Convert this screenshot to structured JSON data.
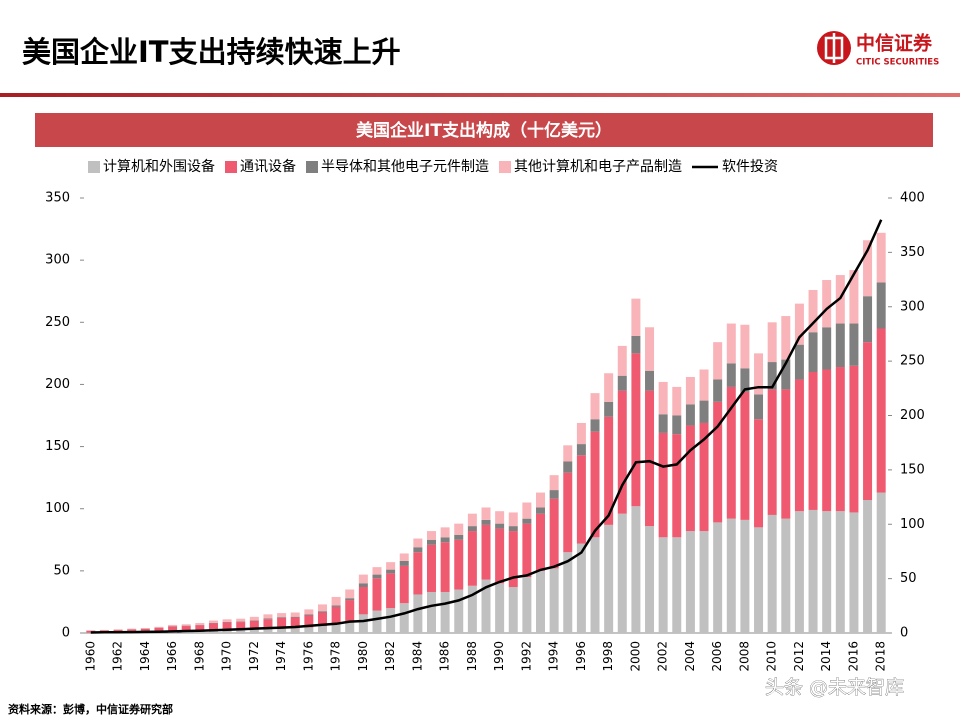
{
  "header": {
    "title": "美国企业IT支出持续快速上升",
    "logo_name": "中信证券",
    "logo_subtitle": "CITIC SECURITIES"
  },
  "source": "资料来源：彭博，中信证券研究部",
  "watermark": "头条 @未来智库",
  "chart_data": {
    "type": "bar",
    "stacked": true,
    "title": "美国企业IT支出构成（十亿美元）",
    "legend": "top",
    "categories": [
      1960,
      null,
      1962,
      null,
      1964,
      null,
      1966,
      null,
      1968,
      null,
      1970,
      null,
      1972,
      null,
      1974,
      null,
      1976,
      null,
      1978,
      null,
      1980,
      null,
      1982,
      null,
      1984,
      null,
      1986,
      null,
      1988,
      null,
      1990,
      null,
      1992,
      null,
      1994,
      null,
      1996,
      null,
      1998,
      null,
      2000,
      null,
      2002,
      null,
      2004,
      null,
      2006,
      null,
      2008,
      null,
      2010,
      null,
      2012,
      null,
      2014,
      null,
      2016,
      null,
      2018
    ],
    "ylim": [
      0,
      350
    ],
    "yticks": [
      0,
      50,
      100,
      150,
      200,
      250,
      300,
      350
    ],
    "y2lim": [
      0,
      400
    ],
    "y2ticks": [
      0,
      50,
      100,
      150,
      200,
      250,
      300,
      350,
      400
    ],
    "series": [
      {
        "name": "计算机和外围设备",
        "color": "#c0c0c0",
        "values": [
          0.3,
          0.4,
          0.6,
          0.8,
          1,
          1.3,
          1.8,
          2,
          2.2,
          2.7,
          2.8,
          2.8,
          3.2,
          3.6,
          3.8,
          3.8,
          4.5,
          5.5,
          7,
          9.5,
          15,
          18,
          20,
          24,
          31,
          33,
          33,
          35,
          38,
          43,
          40,
          37,
          45,
          50,
          52,
          65,
          72,
          77,
          87,
          96,
          102,
          86,
          77,
          77,
          82,
          82,
          89,
          92,
          91,
          85,
          95,
          92,
          98,
          99,
          98,
          98,
          97,
          107,
          113
        ]
      },
      {
        "name": "通讯设备",
        "color": "#f05a70",
        "values": [
          1.5,
          1.7,
          1.9,
          2.1,
          2.3,
          2.8,
          3.4,
          3.6,
          4.1,
          5,
          5.7,
          6,
          6.6,
          7.5,
          8.4,
          8.7,
          9.6,
          11,
          14,
          17,
          22,
          26,
          28,
          30,
          34,
          38,
          40,
          40,
          44,
          44,
          44,
          45,
          43,
          46,
          56,
          64,
          71,
          85,
          87,
          99,
          123,
          109,
          84,
          83,
          85,
          87,
          97,
          106,
          103,
          87,
          101,
          104,
          106,
          111,
          114,
          116,
          118,
          127,
          132
        ]
      },
      {
        "name": "半导体和其他电子元件制造",
        "color": "#7f7f7f",
        "values": [
          0.1,
          0.1,
          0.1,
          0.1,
          0.2,
          0.2,
          0.3,
          0.3,
          0.3,
          0.4,
          0.4,
          0.4,
          0.5,
          0.6,
          0.6,
          0.6,
          0.8,
          1,
          1.2,
          1.5,
          3,
          3,
          3,
          4,
          4,
          4,
          4,
          4,
          4,
          4,
          4,
          4,
          4,
          5,
          7,
          9,
          9,
          10,
          12,
          12,
          14,
          16,
          15,
          15,
          17,
          18,
          18,
          19,
          19,
          20,
          22,
          24,
          28,
          32,
          34,
          35,
          34,
          37,
          37
        ]
      },
      {
        "name": "其他计算机和电子产品制造",
        "color": "#f8b4b8",
        "values": [
          0.3,
          0.3,
          0.4,
          0.5,
          0.5,
          0.7,
          1,
          1.1,
          1.4,
          1.9,
          2.1,
          2.3,
          2.7,
          3.3,
          3.2,
          3.4,
          4.1,
          5.5,
          6.8,
          7,
          7,
          6,
          6,
          6,
          7,
          7,
          8,
          9,
          10,
          10,
          10,
          11,
          13,
          12,
          12,
          13,
          17,
          21,
          23,
          24,
          30,
          35,
          26,
          23,
          22,
          25,
          30,
          32,
          35,
          33,
          32,
          35,
          33,
          34,
          38,
          39,
          43,
          45,
          40
        ]
      },
      {
        "name": "软件投资",
        "type": "line",
        "axis": "y2",
        "color": "#000000",
        "values": [
          0.5,
          0.6,
          0.7,
          0.8,
          1,
          1.2,
          1.5,
          1.8,
          2,
          2.5,
          3,
          3.5,
          4,
          4.5,
          5,
          5.5,
          6.5,
          7.5,
          8.5,
          10.5,
          11,
          13,
          15,
          18,
          22,
          25,
          27,
          30,
          35,
          42,
          47,
          51,
          53,
          58,
          61,
          66,
          74,
          94,
          108,
          136,
          157,
          158,
          153,
          155,
          168,
          178,
          190,
          207,
          224,
          226,
          226,
          248,
          272,
          285,
          298,
          308,
          330,
          352,
          380
        ]
      }
    ]
  }
}
